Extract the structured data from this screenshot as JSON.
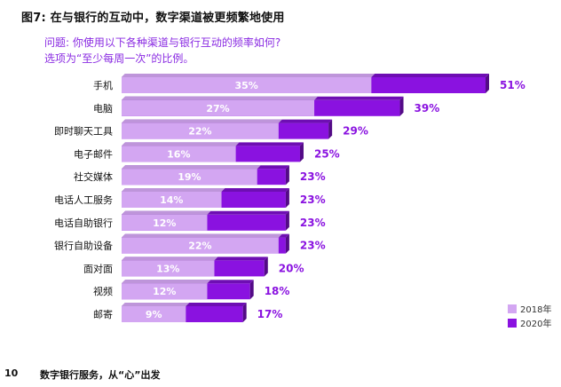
{
  "header": {
    "title": "图7: 在与银行的互动中，数字渠道被更频繁地使用",
    "question_line1": "问题: 你使用以下各种渠道与银行互动的频率如何?",
    "question_line2": "选项为“至少每周一次”的比例。"
  },
  "colors": {
    "series_2018": "#d3a6f2",
    "series_2020": "#8a12e0",
    "label_2020": "#8a12e0"
  },
  "chart_data": {
    "type": "bar",
    "orientation": "horizontal",
    "categories": [
      "手机",
      "电脑",
      "即时聊天工具",
      "电子邮件",
      "社交媒体",
      "电话人工服务",
      "电话自助银行",
      "银行自助设备",
      "面对面",
      "视频",
      "邮寄"
    ],
    "series": [
      {
        "name": "2018年",
        "values": [
          35,
          27,
          22,
          16,
          19,
          14,
          12,
          22,
          13,
          12,
          9
        ],
        "labels": [
          "35%",
          "27%",
          "22%",
          "16%",
          "19%",
          "14%",
          "12%",
          "22%",
          "13%",
          "12%",
          "9%"
        ]
      },
      {
        "name": "2020年",
        "values": [
          51,
          39,
          29,
          25,
          23,
          23,
          23,
          23,
          20,
          18,
          17
        ],
        "labels": [
          "51%",
          "39%",
          "29%",
          "25%",
          "23%",
          "23%",
          "23%",
          "23%",
          "20%",
          "18%",
          "17%"
        ]
      }
    ],
    "xlim": [
      0,
      51
    ],
    "legend_position": "bottom-right"
  },
  "legend": {
    "label_2018": "2018年",
    "label_2020": "2020年"
  },
  "footer": {
    "page_number": "10",
    "text": "数字银行服务，从“心”出发"
  }
}
